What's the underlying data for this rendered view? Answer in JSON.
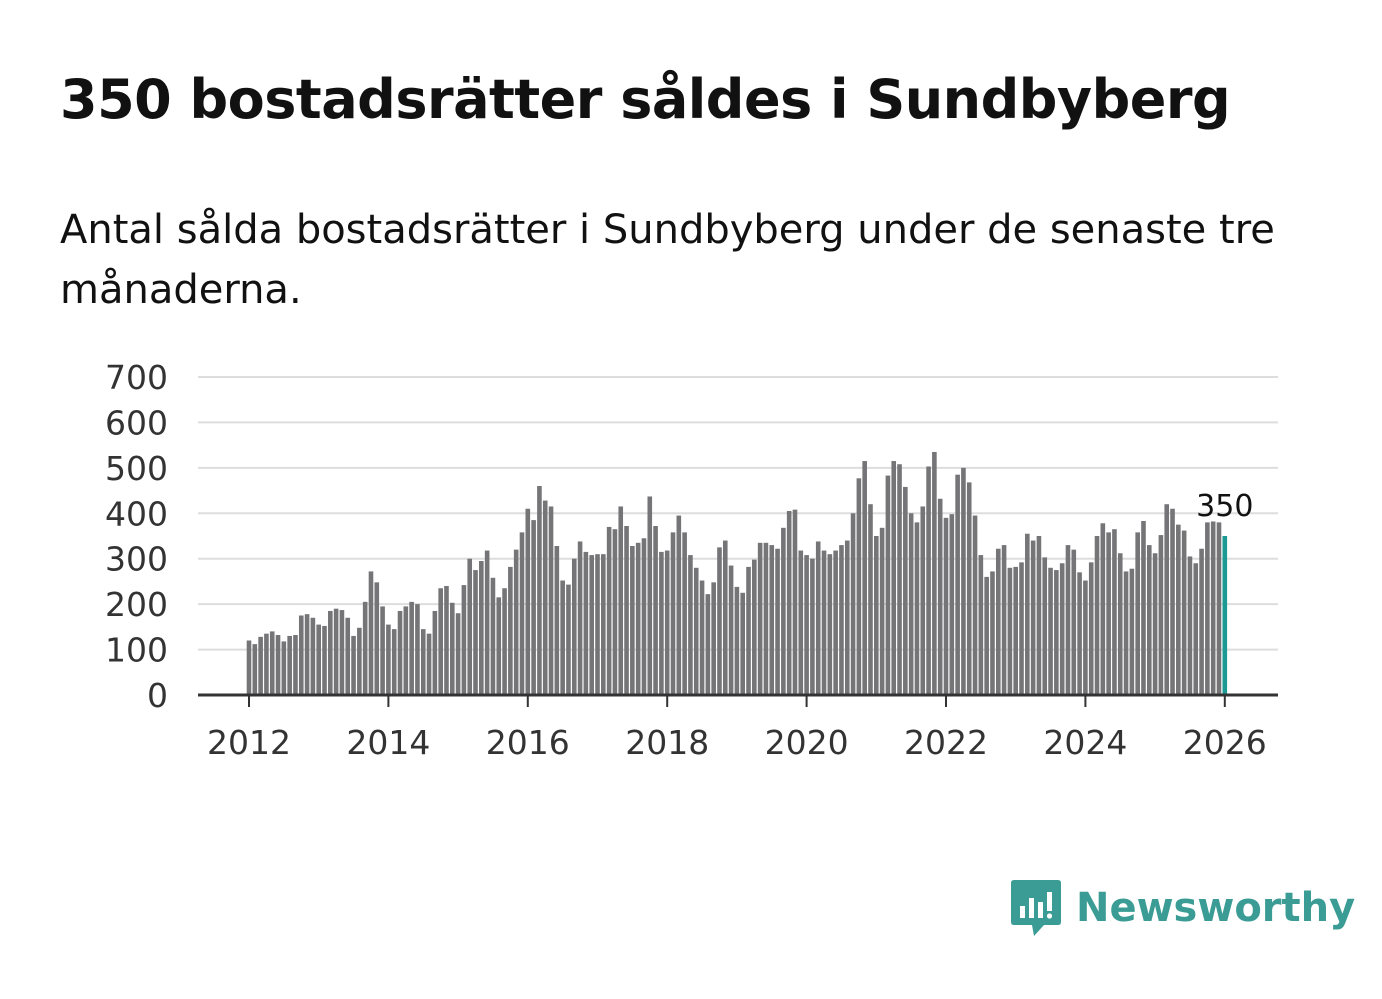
{
  "title": "350 bostadsrätter såldes i Sundbyberg",
  "subtitle": "Antal sålda bostadsrätter i Sundbyberg under de senaste tre månaderna.",
  "brand": {
    "name": "Newsworthy",
    "color": "#3a9c94",
    "logo_icon": "bar-chart-bubble-icon"
  },
  "chart_data": {
    "type": "bar",
    "title": "",
    "xlabel": "",
    "ylabel": "",
    "ylim": [
      0,
      700
    ],
    "yticks": [
      "0",
      "100",
      "200",
      "300",
      "400",
      "500",
      "600",
      "700"
    ],
    "xticks": [
      "2012",
      "2014",
      "2016",
      "2018",
      "2020",
      "2022",
      "2024",
      "2026"
    ],
    "x_start": "2012-01",
    "bar_color": "#757477",
    "highlight_color": "#1a9a93",
    "highlight_label": "350",
    "values": [
      120,
      112,
      128,
      135,
      140,
      132,
      118,
      130,
      132,
      175,
      178,
      170,
      155,
      152,
      185,
      190,
      187,
      170,
      130,
      148,
      205,
      272,
      248,
      195,
      155,
      145,
      185,
      195,
      205,
      200,
      145,
      135,
      185,
      235,
      240,
      203,
      180,
      242,
      300,
      275,
      295,
      318,
      258,
      215,
      235,
      282,
      320,
      358,
      410,
      385,
      460,
      428,
      415,
      328,
      252,
      243,
      300,
      338,
      315,
      308,
      310,
      310,
      370,
      365,
      415,
      372,
      328,
      335,
      345,
      437,
      372,
      315,
      318,
      358,
      395,
      358,
      308,
      280,
      252,
      222,
      248,
      325,
      340,
      285,
      238,
      225,
      282,
      298,
      335,
      335,
      330,
      322,
      368,
      405,
      408,
      318,
      308,
      300,
      338,
      318,
      310,
      318,
      330,
      340,
      400,
      477,
      515,
      420,
      350,
      368,
      483,
      515,
      508,
      458,
      400,
      380,
      415,
      503,
      535,
      432,
      390,
      398,
      485,
      500,
      468,
      395,
      308,
      260,
      272,
      322,
      330,
      280,
      282,
      292,
      355,
      340,
      350,
      303,
      280,
      275,
      290,
      330,
      320,
      270,
      252,
      292,
      350,
      378,
      358,
      365,
      312,
      272,
      278,
      358,
      383,
      330,
      312,
      352,
      420,
      410,
      375,
      362,
      305,
      290,
      322,
      380,
      382,
      380,
      350
    ]
  }
}
